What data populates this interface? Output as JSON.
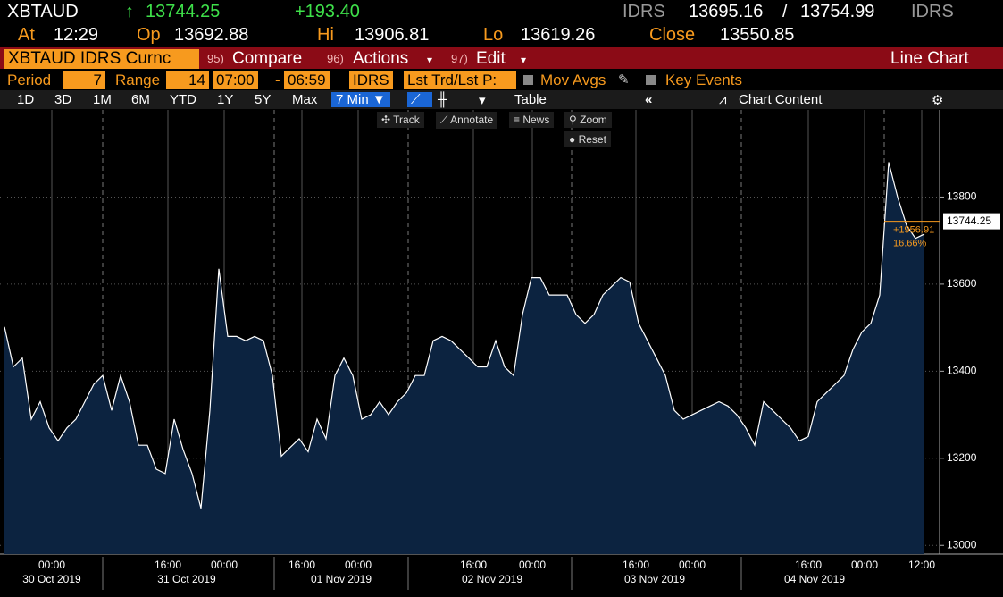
{
  "header": {
    "ticker": "XBTAUD",
    "arrow": "↑",
    "last": "13744.25",
    "change": "+193.40",
    "bid_source": "IDRS",
    "bid": "13695.16",
    "separator": "/",
    "ask": "13754.99",
    "ask_source": "IDRS"
  },
  "quote": {
    "at_label": "At",
    "at": "12:29",
    "open_label": "Op",
    "open": "13692.88",
    "high_label": "Hi",
    "high": "13906.81",
    "low_label": "Lo",
    "low": "13619.26",
    "close_label": "Close",
    "close": "13550.85"
  },
  "command_bar": {
    "security": "XBTAUD IDRS Curnc",
    "menus": [
      {
        "number": "95)",
        "label": "Compare"
      },
      {
        "number": "96)",
        "label": "Actions"
      },
      {
        "number": "97)",
        "label": "Edit"
      }
    ],
    "view": "Line Chart"
  },
  "settings": {
    "period_label": "Period",
    "period": "7",
    "range_label": "Range",
    "range": "14",
    "start": "07:00",
    "dash": "-",
    "end": "06:59",
    "source": "IDRS",
    "field": "Lst Trd/Lst P:",
    "mov_avgs": "Mov Avgs",
    "key_events": "Key Events"
  },
  "toolbar": {
    "buttons": [
      "1D",
      "3D",
      "1M",
      "6M",
      "YTD",
      "1Y",
      "5Y",
      "Max"
    ],
    "interval": "7 Min ▼",
    "table": "Table",
    "chart_content": "Chart Content"
  },
  "chart_tools": [
    "Track",
    "Annotate",
    "News",
    "Zoom",
    "Reset"
  ],
  "chart_data": {
    "type": "area",
    "color": "#ffffff",
    "fill": "#0c2340",
    "values": [
      13502,
      13410,
      13430,
      13290,
      13330,
      13270,
      13240,
      13270,
      13290,
      13330,
      13370,
      13390,
      13310,
      13390,
      13330,
      13230,
      13230,
      13175,
      13165,
      13290,
      13220,
      13165,
      13085,
      13310,
      13635,
      13480,
      13480,
      13470,
      13480,
      13470,
      13390,
      13205,
      13225,
      13245,
      13215,
      13290,
      13245,
      13390,
      13430,
      13390,
      13290,
      13300,
      13330,
      13300,
      13330,
      13350,
      13390,
      13390,
      13470,
      13480,
      13470,
      13450,
      13430,
      13410,
      13410,
      13470,
      13410,
      13390,
      13530,
      13615,
      13615,
      13575,
      13575,
      13575,
      13530,
      13510,
      13530,
      13575,
      13595,
      13615,
      13605,
      13510,
      13470,
      13430,
      13390,
      13310,
      13290,
      13300,
      13310,
      13320,
      13330,
      13320,
      13300,
      13270,
      13230,
      13330,
      13310,
      13290,
      13270,
      13240,
      13250,
      13330,
      13350,
      13370,
      13390,
      13450,
      13490,
      13510,
      13575,
      13880,
      13800,
      13735,
      13705,
      13715
    ],
    "ylim": [
      12980,
      14000
    ],
    "yticks": [
      13000,
      13200,
      13400,
      13600,
      13800
    ],
    "x_time_labels": [
      "00:00",
      "16:00",
      "00:00",
      "16:00",
      "00:00",
      "16:00",
      "00:00",
      "16:00",
      "00:00",
      "16:00",
      "00:00",
      "12:00"
    ],
    "x_date_labels": [
      "30 Oct 2019",
      "31 Oct 2019",
      "01 Nov 2019",
      "02 Nov 2019",
      "03 Nov 2019",
      "04 Nov 2019"
    ],
    "last_price": 13744.25,
    "annotation": [
      "+1956.91",
      "16.66%"
    ]
  }
}
